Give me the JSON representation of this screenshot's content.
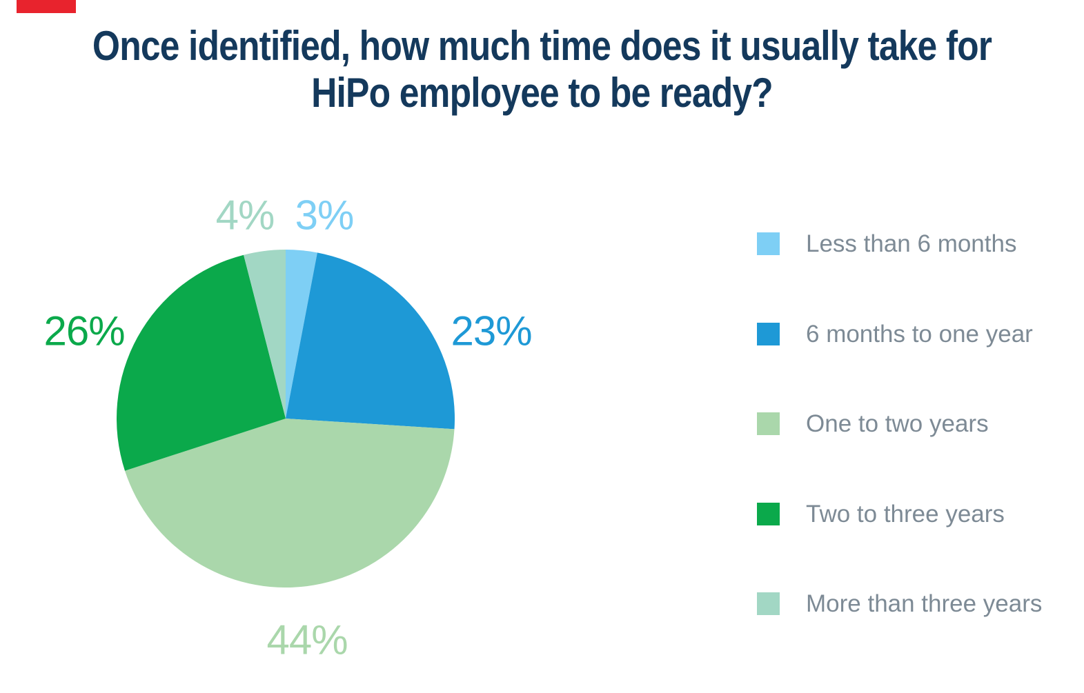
{
  "accent_bar": {
    "color": "#e8232d"
  },
  "title": {
    "text": "Once identified, how much time does it usually take for HiPo employee to be ready?",
    "lines": [
      "Once identified, how much time does it usually take for",
      "HiPo employee to be ready?"
    ],
    "color": "#14395c"
  },
  "chart_data": {
    "type": "pie",
    "title": "Once identified, how much time does it usually take for HiPo employee to be ready?",
    "labels": [
      "Less than 6 months",
      "6 months to one year",
      "One to two years",
      "Two to three years",
      "More than three years"
    ],
    "values": [
      3,
      23,
      44,
      26,
      4
    ],
    "unit": "%",
    "colors": [
      "#7ecff5",
      "#1e99d6",
      "#aad7ab",
      "#0ba94b",
      "#a2d7c4"
    ],
    "direction": "clockwise",
    "start_angle": "12 o'clock",
    "data_labels": [
      "3%",
      "23%",
      "44%",
      "26%",
      "4%"
    ],
    "legend": {
      "position": "right",
      "text_color": "#7d8a95",
      "items": [
        {
          "label": "Less than 6 months",
          "color": "#7ecff5"
        },
        {
          "label": "6 months to one year",
          "color": "#1e99d6"
        },
        {
          "label": "One to two years",
          "color": "#aad7ab"
        },
        {
          "label": "Two to three years",
          "color": "#0ba94b"
        },
        {
          "label": "More than three years",
          "color": "#a2d7c4"
        }
      ]
    }
  }
}
